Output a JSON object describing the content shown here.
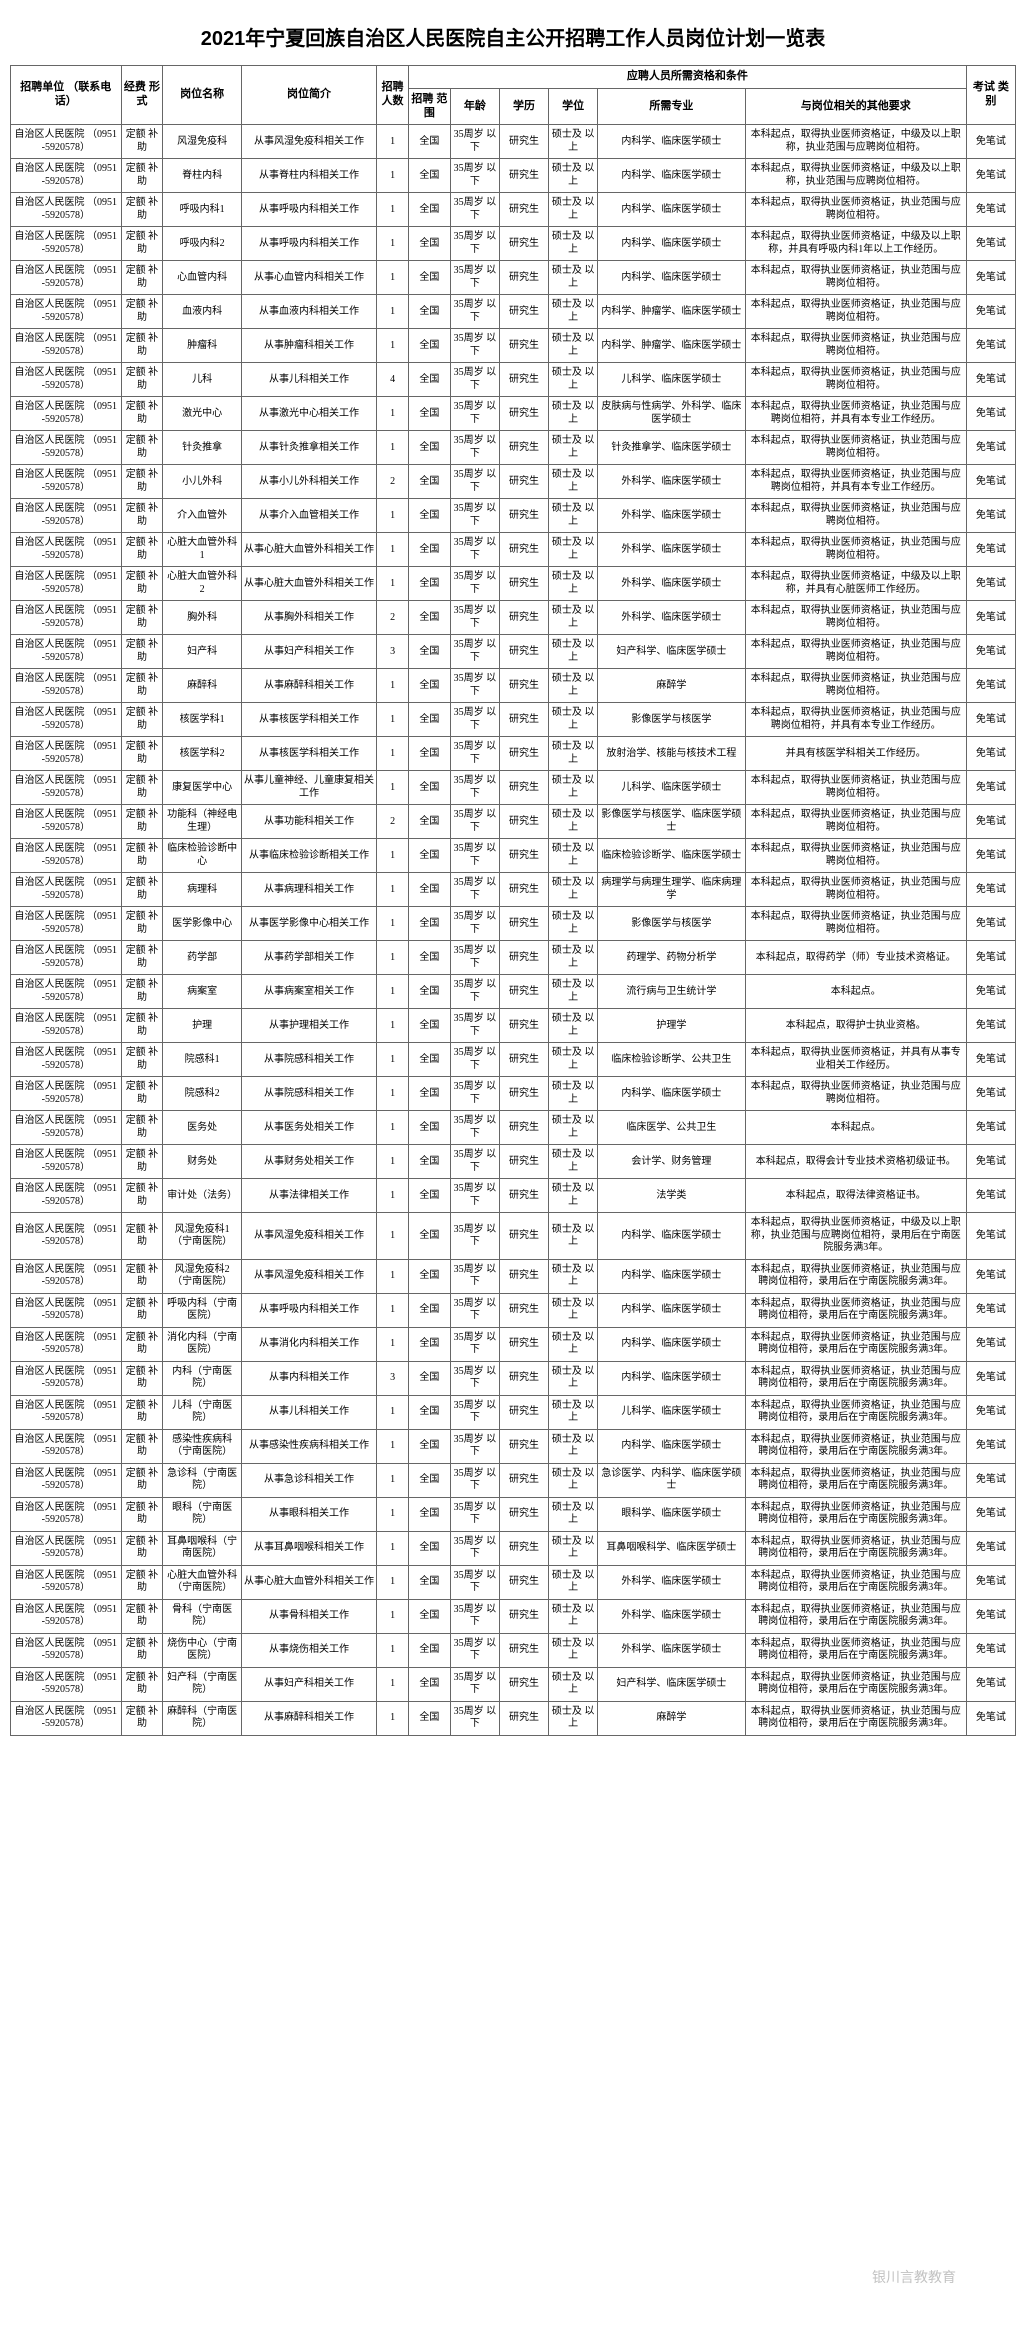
{
  "title": "2021年宁夏回族自治区人民医院自主公开招聘工作人员岗位计划一览表",
  "watermark": "银川言教教育",
  "headers": {
    "unit": "招聘单位\n（联系电话）",
    "fund": "经费\n形式",
    "post": "岗位名称",
    "desc": "岗位简介",
    "num": "招聘\n人数",
    "group": "应聘人员所需资格和条件",
    "scope": "招聘\n范围",
    "age": "年龄",
    "edu": "学历",
    "deg": "学位",
    "major": "所需专业",
    "other": "与岗位相关的其他要求",
    "exam": "考试\n类别"
  },
  "common": {
    "unit": "自治区人民医院\n（0951-5920578）",
    "fund": "定额\n补助",
    "scope": "全国",
    "age": "35周岁\n以下",
    "edu": "研究生",
    "deg": "硕士及\n以上",
    "exam": "免笔试"
  },
  "rows": [
    {
      "post": "风湿免疫科",
      "desc": "从事风湿免疫科相关工作",
      "num": "1",
      "major": "内科学、临床医学硕士",
      "other": "本科起点，取得执业医师资格证，中级及以上职称，执业范围与应聘岗位相符。"
    },
    {
      "post": "脊柱内科",
      "desc": "从事脊柱内科相关工作",
      "num": "1",
      "major": "内科学、临床医学硕士",
      "other": "本科起点，取得执业医师资格证，中级及以上职称，执业范围与应聘岗位相符。"
    },
    {
      "post": "呼吸内科1",
      "desc": "从事呼吸内科相关工作",
      "num": "1",
      "major": "内科学、临床医学硕士",
      "other": "本科起点，取得执业医师资格证，执业范围与应聘岗位相符。"
    },
    {
      "post": "呼吸内科2",
      "desc": "从事呼吸内科相关工作",
      "num": "1",
      "major": "内科学、临床医学硕士",
      "other": "本科起点，取得执业医师资格证，中级及以上职称，并具有呼吸内科1年以上工作经历。"
    },
    {
      "post": "心血管内科",
      "desc": "从事心血管内科相关工作",
      "num": "1",
      "major": "内科学、临床医学硕士",
      "other": "本科起点，取得执业医师资格证，执业范围与应聘岗位相符。"
    },
    {
      "post": "血液内科",
      "desc": "从事血液内科相关工作",
      "num": "1",
      "major": "内科学、肿瘤学、临床医学硕士",
      "other": "本科起点，取得执业医师资格证，执业范围与应聘岗位相符。"
    },
    {
      "post": "肿瘤科",
      "desc": "从事肿瘤科相关工作",
      "num": "1",
      "major": "内科学、肿瘤学、临床医学硕士",
      "other": "本科起点，取得执业医师资格证，执业范围与应聘岗位相符。"
    },
    {
      "post": "儿科",
      "desc": "从事儿科相关工作",
      "num": "4",
      "major": "儿科学、临床医学硕士",
      "other": "本科起点，取得执业医师资格证，执业范围与应聘岗位相符。"
    },
    {
      "post": "激光中心",
      "desc": "从事激光中心相关工作",
      "num": "1",
      "major": "皮肤病与性病学、外科学、临床医学硕士",
      "other": "本科起点，取得执业医师资格证，执业范围与应聘岗位相符，并具有本专业工作经历。"
    },
    {
      "post": "针灸推拿",
      "desc": "从事针灸推拿相关工作",
      "num": "1",
      "major": "针灸推拿学、临床医学硕士",
      "other": "本科起点，取得执业医师资格证，执业范围与应聘岗位相符。"
    },
    {
      "post": "小儿外科",
      "desc": "从事小儿外科相关工作",
      "num": "2",
      "major": "外科学、临床医学硕士",
      "other": "本科起点，取得执业医师资格证，执业范围与应聘岗位相符，并具有本专业工作经历。"
    },
    {
      "post": "介入血管外",
      "desc": "从事介入血管相关工作",
      "num": "1",
      "major": "外科学、临床医学硕士",
      "other": "本科起点，取得执业医师资格证，执业范围与应聘岗位相符。"
    },
    {
      "post": "心脏大血管外科1",
      "desc": "从事心脏大血管外科相关工作",
      "num": "1",
      "major": "外科学、临床医学硕士",
      "other": "本科起点，取得执业医师资格证，执业范围与应聘岗位相符。"
    },
    {
      "post": "心脏大血管外科2",
      "desc": "从事心脏大血管外科相关工作",
      "num": "1",
      "major": "外科学、临床医学硕士",
      "other": "本科起点，取得执业医师资格证，中级及以上职称，并具有心脏医师工作经历。"
    },
    {
      "post": "胸外科",
      "desc": "从事胸外科相关工作",
      "num": "2",
      "major": "外科学、临床医学硕士",
      "other": "本科起点，取得执业医师资格证，执业范围与应聘岗位相符。"
    },
    {
      "post": "妇产科",
      "desc": "从事妇产科相关工作",
      "num": "3",
      "major": "妇产科学、临床医学硕士",
      "other": "本科起点，取得执业医师资格证，执业范围与应聘岗位相符。"
    },
    {
      "post": "麻醉科",
      "desc": "从事麻醉科相关工作",
      "num": "1",
      "major": "麻醉学",
      "other": "本科起点，取得执业医师资格证，执业范围与应聘岗位相符。"
    },
    {
      "post": "核医学科1",
      "desc": "从事核医学科相关工作",
      "num": "1",
      "major": "影像医学与核医学",
      "other": "本科起点，取得执业医师资格证，执业范围与应聘岗位相符，并具有本专业工作经历。"
    },
    {
      "post": "核医学科2",
      "desc": "从事核医学科相关工作",
      "num": "1",
      "major": "放射治学、核能与核技术工程",
      "other": "并具有核医学科相关工作经历。"
    },
    {
      "post": "康复医学中心",
      "desc": "从事儿童神经、儿童康复相关工作",
      "num": "1",
      "major": "儿科学、临床医学硕士",
      "other": "本科起点，取得执业医师资格证，执业范围与应聘岗位相符。"
    },
    {
      "post": "功能科（神经电生理）",
      "desc": "从事功能科相关工作",
      "num": "2",
      "major": "影像医学与核医学、临床医学硕士",
      "other": "本科起点，取得执业医师资格证，执业范围与应聘岗位相符。"
    },
    {
      "post": "临床检验诊断中心",
      "desc": "从事临床检验诊断相关工作",
      "num": "1",
      "major": "临床检验诊断学、临床医学硕士",
      "other": "本科起点，取得执业医师资格证，执业范围与应聘岗位相符。"
    },
    {
      "post": "病理科",
      "desc": "从事病理科相关工作",
      "num": "1",
      "major": "病理学与病理生理学、临床病理学",
      "other": "本科起点，取得执业医师资格证，执业范围与应聘岗位相符。"
    },
    {
      "post": "医学影像中心",
      "desc": "从事医学影像中心相关工作",
      "num": "1",
      "major": "影像医学与核医学",
      "other": "本科起点，取得执业医师资格证，执业范围与应聘岗位相符。"
    },
    {
      "post": "药学部",
      "desc": "从事药学部相关工作",
      "num": "1",
      "major": "药理学、药物分析学",
      "other": "本科起点，取得药学（师）专业技术资格证。"
    },
    {
      "post": "病案室",
      "desc": "从事病案室相关工作",
      "num": "1",
      "major": "流行病与卫生统计学",
      "other": "本科起点。"
    },
    {
      "post": "护理",
      "desc": "从事护理相关工作",
      "num": "1",
      "major": "护理学",
      "other": "本科起点，取得护士执业资格。"
    },
    {
      "post": "院感科1",
      "desc": "从事院感科相关工作",
      "num": "1",
      "major": "临床检验诊断学、公共卫生",
      "other": "本科起点，取得执业医师资格证，并具有从事专业相关工作经历。"
    },
    {
      "post": "院感科2",
      "desc": "从事院感科相关工作",
      "num": "1",
      "major": "内科学、临床医学硕士",
      "other": "本科起点，取得执业医师资格证，执业范围与应聘岗位相符。"
    },
    {
      "post": "医务处",
      "desc": "从事医务处相关工作",
      "num": "1",
      "major": "临床医学、公共卫生",
      "other": "本科起点。"
    },
    {
      "post": "财务处",
      "desc": "从事财务处相关工作",
      "num": "1",
      "major": "会计学、财务管理",
      "other": "本科起点，取得会计专业技术资格初级证书。"
    },
    {
      "post": "审计处（法务）",
      "desc": "从事法律相关工作",
      "num": "1",
      "major": "法学类",
      "other": "本科起点，取得法律资格证书。"
    },
    {
      "post": "风湿免疫科1（宁南医院）",
      "desc": "从事风湿免疫科相关工作",
      "num": "1",
      "major": "内科学、临床医学硕士",
      "other": "本科起点，取得执业医师资格证，中级及以上职称，执业范围与应聘岗位相符，录用后在宁南医院服务满3年。"
    },
    {
      "post": "风湿免疫科2（宁南医院）",
      "desc": "从事风湿免疫科相关工作",
      "num": "1",
      "major": "内科学、临床医学硕士",
      "other": "本科起点，取得执业医师资格证，执业范围与应聘岗位相符，录用后在宁南医院服务满3年。"
    },
    {
      "post": "呼吸内科（宁南医院）",
      "desc": "从事呼吸内科相关工作",
      "num": "1",
      "major": "内科学、临床医学硕士",
      "other": "本科起点，取得执业医师资格证，执业范围与应聘岗位相符，录用后在宁南医院服务满3年。"
    },
    {
      "post": "消化内科（宁南医院）",
      "desc": "从事消化内科相关工作",
      "num": "1",
      "major": "内科学、临床医学硕士",
      "other": "本科起点，取得执业医师资格证，执业范围与应聘岗位相符，录用后在宁南医院服务满3年。"
    },
    {
      "post": "内科（宁南医院）",
      "desc": "从事内科相关工作",
      "num": "3",
      "major": "内科学、临床医学硕士",
      "other": "本科起点，取得执业医师资格证，执业范围与应聘岗位相符，录用后在宁南医院服务满3年。"
    },
    {
      "post": "儿科（宁南医院）",
      "desc": "从事儿科相关工作",
      "num": "1",
      "major": "儿科学、临床医学硕士",
      "other": "本科起点，取得执业医师资格证，执业范围与应聘岗位相符，录用后在宁南医院服务满3年。"
    },
    {
      "post": "感染性疾病科（宁南医院）",
      "desc": "从事感染性疾病科相关工作",
      "num": "1",
      "major": "内科学、临床医学硕士",
      "other": "本科起点，取得执业医师资格证，执业范围与应聘岗位相符，录用后在宁南医院服务满3年。"
    },
    {
      "post": "急诊科（宁南医院）",
      "desc": "从事急诊科相关工作",
      "num": "1",
      "major": "急诊医学、内科学、临床医学硕士",
      "other": "本科起点，取得执业医师资格证，执业范围与应聘岗位相符，录用后在宁南医院服务满3年。"
    },
    {
      "post": "眼科（宁南医院）",
      "desc": "从事眼科相关工作",
      "num": "1",
      "major": "眼科学、临床医学硕士",
      "other": "本科起点，取得执业医师资格证，执业范围与应聘岗位相符，录用后在宁南医院服务满3年。"
    },
    {
      "post": "耳鼻咽喉科（宁南医院）",
      "desc": "从事耳鼻咽喉科相关工作",
      "num": "1",
      "major": "耳鼻咽喉科学、临床医学硕士",
      "other": "本科起点，取得执业医师资格证，执业范围与应聘岗位相符，录用后在宁南医院服务满3年。"
    },
    {
      "post": "心脏大血管外科（宁南医院）",
      "desc": "从事心脏大血管外科相关工作",
      "num": "1",
      "major": "外科学、临床医学硕士",
      "other": "本科起点，取得执业医师资格证，执业范围与应聘岗位相符，录用后在宁南医院服务满3年。"
    },
    {
      "post": "骨科（宁南医院）",
      "desc": "从事骨科相关工作",
      "num": "1",
      "major": "外科学、临床医学硕士",
      "other": "本科起点，取得执业医师资格证，执业范围与应聘岗位相符，录用后在宁南医院服务满3年。"
    },
    {
      "post": "烧伤中心（宁南医院）",
      "desc": "从事烧伤相关工作",
      "num": "1",
      "major": "外科学、临床医学硕士",
      "other": "本科起点，取得执业医师资格证，执业范围与应聘岗位相符，录用后在宁南医院服务满3年。"
    },
    {
      "post": "妇产科（宁南医院）",
      "desc": "从事妇产科相关工作",
      "num": "1",
      "major": "妇产科学、临床医学硕士",
      "other": "本科起点，取得执业医师资格证，执业范围与应聘岗位相符，录用后在宁南医院服务满3年。"
    },
    {
      "post": "麻醉科（宁南医院）",
      "desc": "从事麻醉科相关工作",
      "num": "1",
      "major": "麻醉学",
      "other": "本科起点，取得执业医师资格证，执业范围与应聘岗位相符，录用后在宁南医院服务满3年。"
    }
  ]
}
